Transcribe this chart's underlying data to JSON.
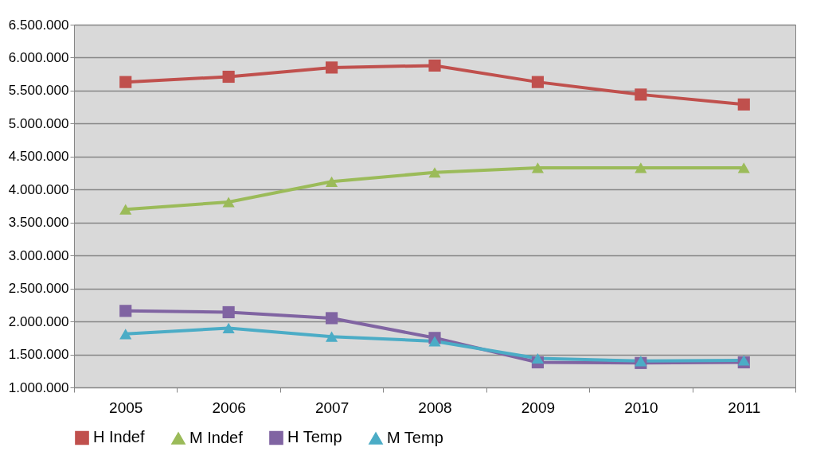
{
  "chart_data": {
    "type": "line",
    "categories": [
      "2005",
      "2006",
      "2007",
      "2008",
      "2009",
      "2010",
      "2011"
    ],
    "ylim": [
      1000000,
      6500000
    ],
    "yticks": [
      {
        "value": 1000000,
        "label": "1.000.000"
      },
      {
        "value": 1500000,
        "label": "1.500.000"
      },
      {
        "value": 2000000,
        "label": "2.000.000"
      },
      {
        "value": 2500000,
        "label": "2.500.000"
      },
      {
        "value": 3000000,
        "label": "3.000.000"
      },
      {
        "value": 3500000,
        "label": "3.500.000"
      },
      {
        "value": 4000000,
        "label": "4.000.000"
      },
      {
        "value": 4500000,
        "label": "4.500.000"
      },
      {
        "value": 5000000,
        "label": "5.000.000"
      },
      {
        "value": 5500000,
        "label": "5.500.000"
      },
      {
        "value": 6000000,
        "label": "6.000.000"
      },
      {
        "value": 6500000,
        "label": "6.500.000"
      }
    ],
    "grid": "y",
    "legend": "bottom",
    "line_style": "solid",
    "series": [
      {
        "name": "H Indef",
        "color": "#c0504d",
        "marker": "square",
        "values": [
          5630000,
          5710000,
          5850000,
          5880000,
          5630000,
          5440000,
          5290000
        ]
      },
      {
        "name": "M Indef",
        "color": "#9bbb59",
        "marker": "triangle",
        "values": [
          3700000,
          3810000,
          4120000,
          4260000,
          4330000,
          4330000,
          4330000
        ]
      },
      {
        "name": "H Temp",
        "color": "#8064a2",
        "marker": "square",
        "values": [
          2160000,
          2140000,
          2050000,
          1750000,
          1380000,
          1370000,
          1380000
        ]
      },
      {
        "name": "M Temp",
        "color": "#4bacc6",
        "marker": "triangle",
        "values": [
          1810000,
          1900000,
          1770000,
          1700000,
          1440000,
          1400000,
          1410000
        ]
      }
    ]
  }
}
